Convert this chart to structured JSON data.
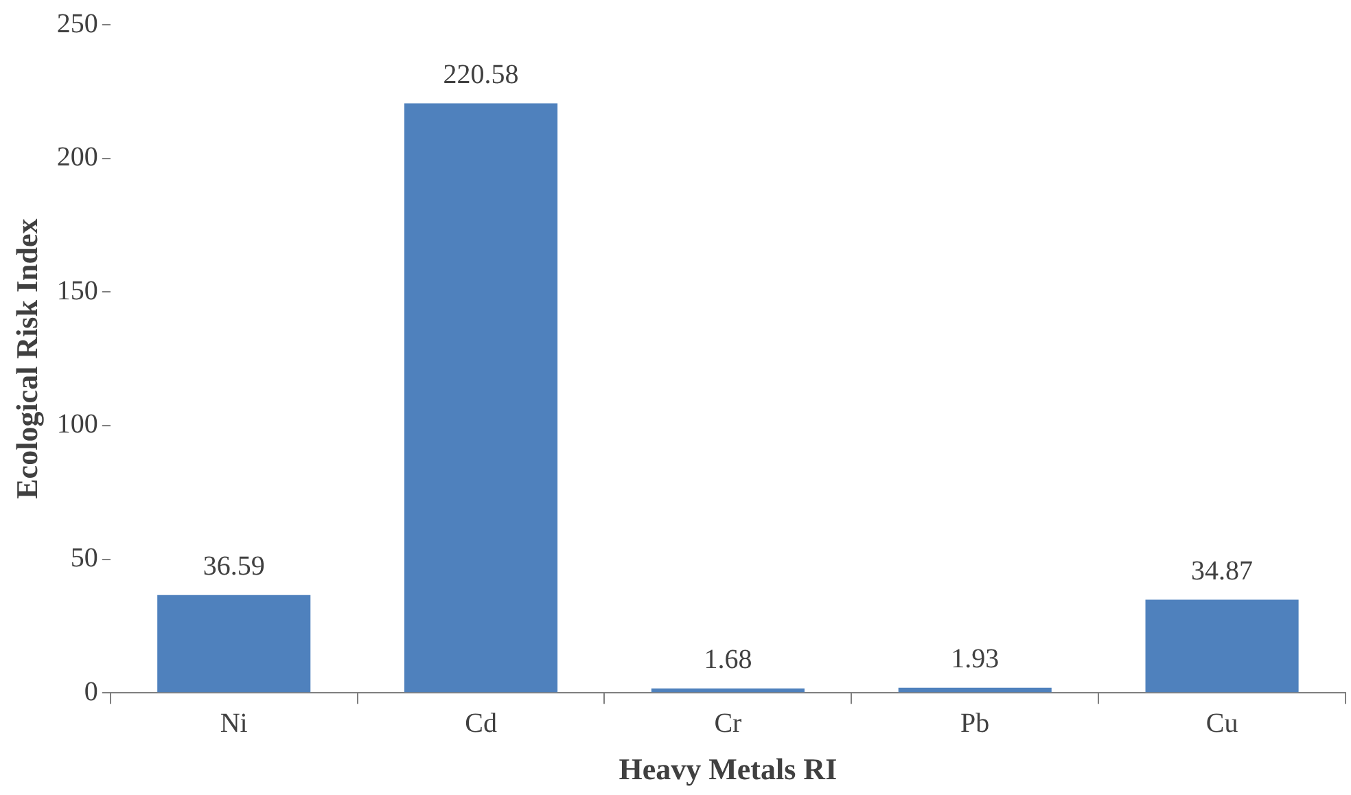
{
  "chart_data": {
    "type": "bar",
    "xlabel": "Heavy Metals RI",
    "ylabel": "Ecological Risk Index",
    "categories": [
      "Ni",
      "Cd",
      "Cr",
      "Pb",
      "Cu"
    ],
    "values": [
      36.59,
      220.58,
      1.68,
      1.93,
      34.87
    ],
    "color": "#4f81bd",
    "ylim": [
      0,
      250
    ],
    "yticks": [
      0,
      50,
      100,
      150,
      200,
      250
    ],
    "grid": false,
    "legend": false,
    "data_labels": true
  }
}
